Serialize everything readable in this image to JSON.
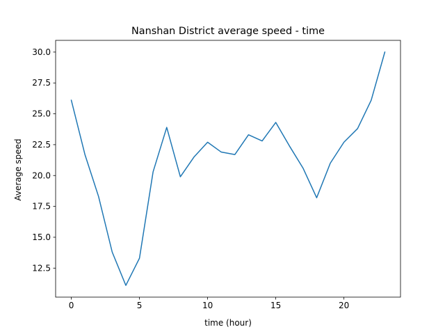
{
  "chart_data": {
    "type": "line",
    "title": "Nanshan District average speed - time",
    "xlabel": "time (hour)",
    "ylabel": "Average speed",
    "xlim": [
      -1.15,
      24.15
    ],
    "ylim": [
      10.15,
      30.95
    ],
    "xticks": [
      0,
      5,
      10,
      15,
      20
    ],
    "yticks": [
      12.5,
      15.0,
      17.5,
      20.0,
      22.5,
      25.0,
      27.5,
      30.0
    ],
    "ytick_labels": [
      "12.5",
      "15.0",
      "17.5",
      "20.0",
      "22.5",
      "25.0",
      "27.5",
      "30.0"
    ],
    "grid": false,
    "legend": "none",
    "line_color": "#1f77b4",
    "series": [
      {
        "x": [
          0,
          1,
          2,
          3,
          4,
          5,
          6,
          7,
          8,
          9,
          10,
          11,
          12,
          13,
          14,
          15,
          16,
          17,
          18,
          19,
          20,
          21,
          22,
          23
        ],
        "values": [
          26.1,
          21.7,
          18.3,
          13.8,
          11.1,
          13.3,
          20.3,
          23.9,
          19.9,
          21.5,
          22.7,
          21.9,
          21.7,
          23.3,
          22.8,
          24.3,
          22.4,
          20.6,
          18.2,
          21.0,
          22.7,
          23.8,
          26.1,
          30.0
        ]
      }
    ]
  }
}
